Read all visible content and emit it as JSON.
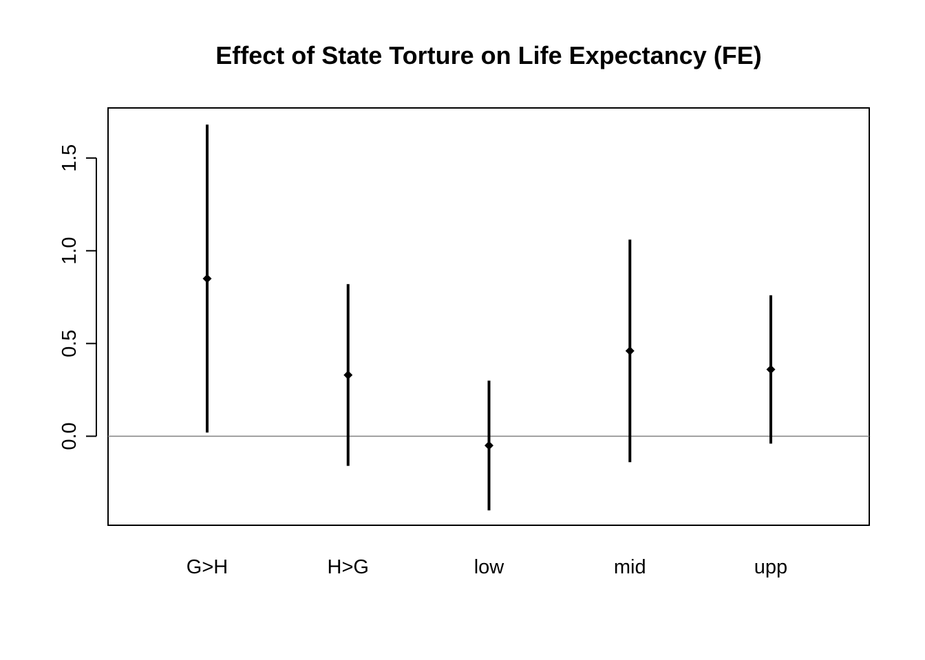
{
  "chart_data": {
    "type": "errorbar",
    "title": "Effect of State Torture on Life Expectancy (FE)",
    "xlabel": "",
    "ylabel": "",
    "categories": [
      "G>H",
      "H>G",
      "low",
      "mid",
      "upp"
    ],
    "estimates": [
      0.85,
      0.33,
      -0.05,
      0.46,
      0.36
    ],
    "lower": [
      0.02,
      -0.16,
      -0.4,
      -0.14,
      -0.04
    ],
    "upper": [
      1.68,
      0.82,
      0.3,
      1.06,
      0.76
    ],
    "yticks": [
      0.0,
      0.5,
      1.0,
      1.5
    ],
    "ytick_labels": [
      "0.0",
      "0.5",
      "1.0",
      "1.5"
    ],
    "ylim": [
      -0.48,
      1.77
    ],
    "reference_line": 0.0,
    "grid": false,
    "colors": {
      "marks": "#000000",
      "reference_line": "#808080",
      "frame": "#000000"
    }
  }
}
